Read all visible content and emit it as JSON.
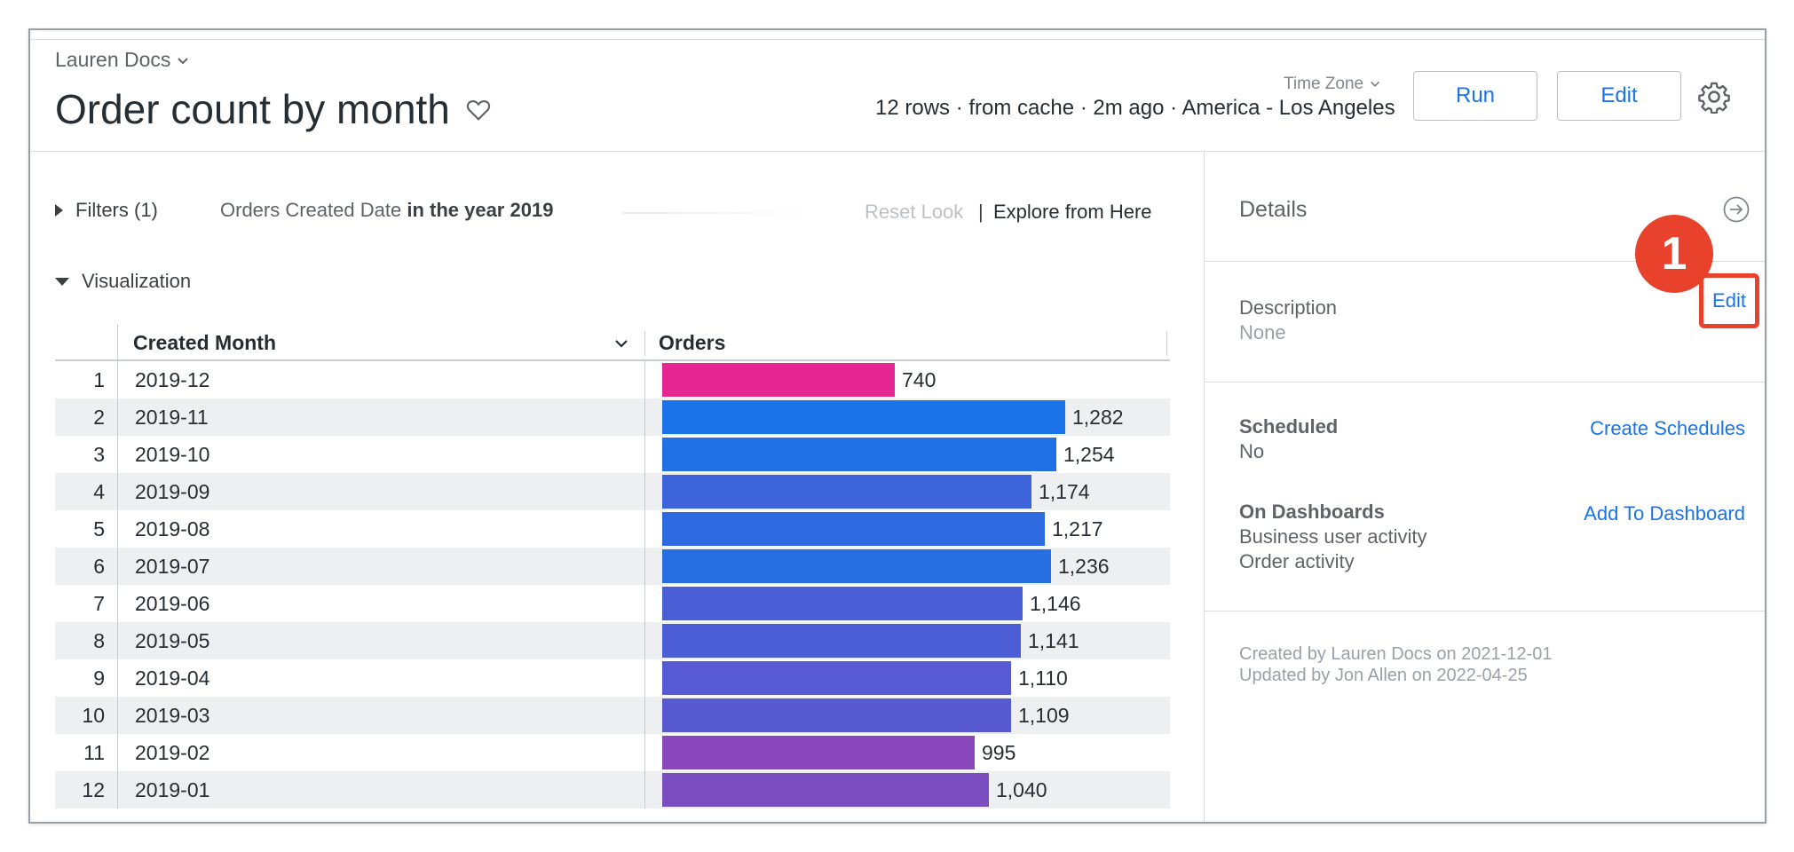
{
  "header": {
    "breadcrumb": "Lauren Docs",
    "title": "Order count by month",
    "time_zone_label": "Time Zone",
    "meta": "12 rows · from cache · 2m ago · America - Los Angeles",
    "run_label": "Run",
    "edit_label": "Edit"
  },
  "filters": {
    "label": "Filters (1)",
    "description_prefix": "Orders Created Date",
    "description_bold": "in the year 2019",
    "reset_label": "Reset Look",
    "separator": "|",
    "explore_label": "Explore from Here"
  },
  "visualization": {
    "label": "Visualization"
  },
  "table": {
    "columns": [
      "Created Month",
      "Orders"
    ],
    "max_value": 1282,
    "rows": [
      {
        "index": "1",
        "month": "2019-12",
        "orders": 740,
        "orders_label": "740",
        "color": "#e52592"
      },
      {
        "index": "2",
        "month": "2019-11",
        "orders": 1282,
        "orders_label": "1,282",
        "color": "#1a73e8"
      },
      {
        "index": "3",
        "month": "2019-10",
        "orders": 1254,
        "orders_label": "1,254",
        "color": "#2170e4"
      },
      {
        "index": "4",
        "month": "2019-09",
        "orders": 1174,
        "orders_label": "1,174",
        "color": "#3d64da"
      },
      {
        "index": "5",
        "month": "2019-08",
        "orders": 1217,
        "orders_label": "1,217",
        "color": "#2e6adf"
      },
      {
        "index": "6",
        "month": "2019-07",
        "orders": 1236,
        "orders_label": "1,236",
        "color": "#266ee2"
      },
      {
        "index": "7",
        "month": "2019-06",
        "orders": 1146,
        "orders_label": "1,146",
        "color": "#4a5fd6"
      },
      {
        "index": "8",
        "month": "2019-05",
        "orders": 1141,
        "orders_label": "1,141",
        "color": "#4b5ed5"
      },
      {
        "index": "9",
        "month": "2019-04",
        "orders": 1110,
        "orders_label": "1,110",
        "color": "#575ad2"
      },
      {
        "index": "10",
        "month": "2019-03",
        "orders": 1109,
        "orders_label": "1,109",
        "color": "#5759d1"
      },
      {
        "index": "11",
        "month": "2019-02",
        "orders": 995,
        "orders_label": "995",
        "color": "#8847bb"
      },
      {
        "index": "12",
        "month": "2019-01",
        "orders": 1040,
        "orders_label": "1,040",
        "color": "#7a4ec0"
      }
    ]
  },
  "details": {
    "title": "Details",
    "description_label": "Description",
    "description_value": "None",
    "description_edit": "Edit",
    "callout_number": "1",
    "scheduled_label": "Scheduled",
    "scheduled_value": "No",
    "create_schedules": "Create Schedules",
    "dashboards_label": "On Dashboards",
    "dashboards": [
      "Business user activity",
      "Order activity"
    ],
    "add_to_dashboard": "Add To Dashboard",
    "created_by": "Created by Lauren Docs on 2021-12-01",
    "updated_by": "Updated by Jon Allen on 2022-04-25"
  },
  "icons": {
    "breadcrumb_chevron": "chevron-down-icon",
    "favorite": "heart-icon",
    "time_zone_chevron": "chevron-down-icon",
    "settings": "gear-icon",
    "filters_toggle": "triangle-right-icon",
    "visualization_toggle": "triangle-down-icon",
    "column_menu": "chevron-down-icon",
    "panel_toggle": "arrow-right-circle-icon"
  },
  "colors": {
    "accent": "#1a73e8",
    "callout": "#e8412c"
  }
}
